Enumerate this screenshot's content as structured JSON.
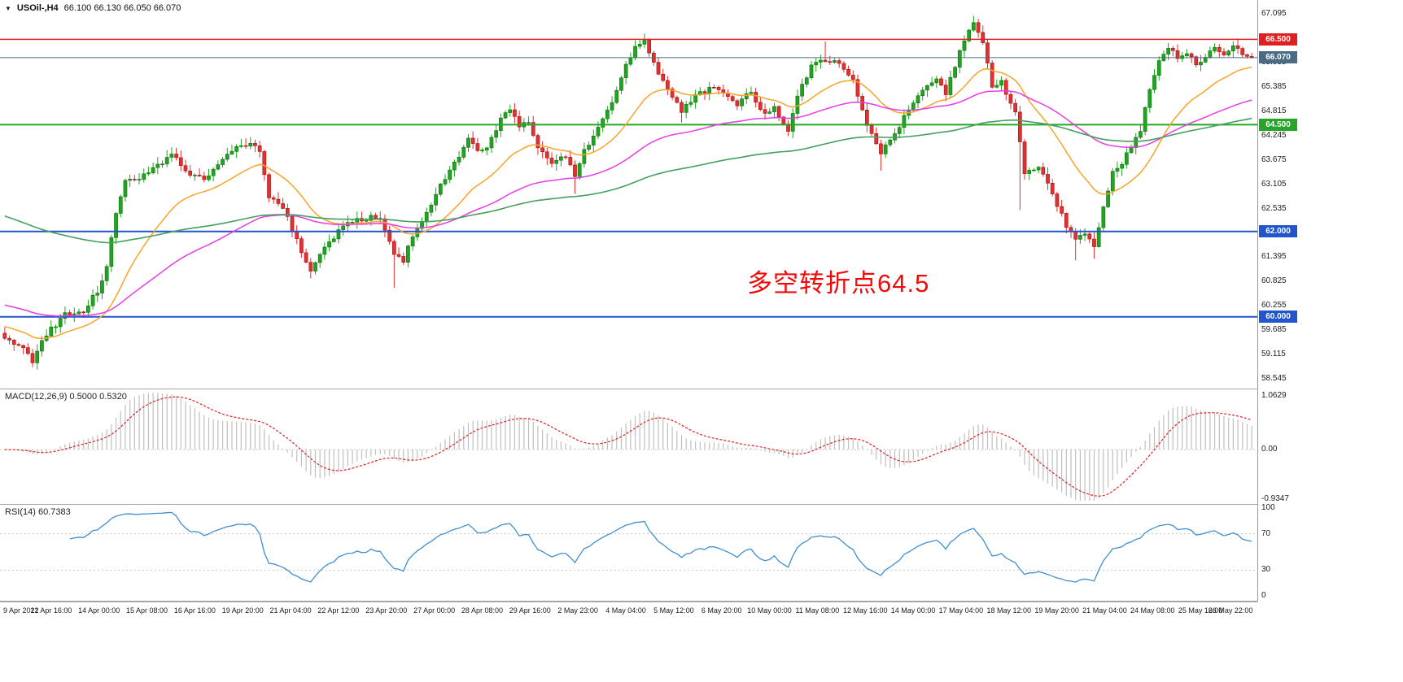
{
  "titlebar": {
    "dropdown_icon": "▼",
    "symbol": "USOil-,H4",
    "ohlc": "66.100 66.130 66.050 66.070"
  },
  "annotation": {
    "text": "多空转折点64.5"
  },
  "colors": {
    "up": "#1fa51f",
    "up_border": "#0c700c",
    "down": "#e33030",
    "down_border": "#9e1515",
    "macd_hist": "#bfbfbf",
    "macd_signal": "#e02020",
    "rsi_line": "#3f8fd2",
    "guide": "#c8c8c8",
    "axis_text": "#1c1c1c",
    "annotation": "#f00a0a"
  },
  "chart_data": {
    "type": "candlestick",
    "symbol": "USOil-",
    "timeframe": "H4",
    "num_candles": 270,
    "price_domain": [
      58.32,
      67.42
    ],
    "current_price": {
      "value": 66.07,
      "label": "66.070",
      "color": "#4a6b85"
    },
    "levels": [
      {
        "price": 66.5,
        "label": "66.500",
        "color": "#e02020",
        "width": 1.5
      },
      {
        "price": 64.5,
        "label": "64.500",
        "color": "#28a428",
        "width": 2
      },
      {
        "price": 62.0,
        "label": "62.000",
        "color": "#2255cc",
        "width": 2
      },
      {
        "price": 60.0,
        "label": "60.000",
        "color": "#2255cc",
        "width": 2
      }
    ],
    "moving_averages": [
      {
        "name": "ma-fast-orange",
        "period": 21,
        "seed": 59.8,
        "color": "#f7a428",
        "width": 1.5
      },
      {
        "name": "ma-mid-magenta",
        "period": 65,
        "seed": 60.3,
        "color": "#e83ce8",
        "width": 1.5
      },
      {
        "name": "ma-slow-green",
        "period": 150,
        "seed": 62.4,
        "color": "#44a05c",
        "width": 1.6
      }
    ],
    "close_keypoints": [
      [
        0,
        59.55
      ],
      [
        3,
        59.35
      ],
      [
        6,
        58.95
      ],
      [
        9,
        59.6
      ],
      [
        13,
        60.05
      ],
      [
        17,
        60.15
      ],
      [
        20,
        60.6
      ],
      [
        22,
        61.2
      ],
      [
        24,
        62.4
      ],
      [
        26,
        63.2
      ],
      [
        30,
        63.3
      ],
      [
        34,
        63.6
      ],
      [
        36,
        63.85
      ],
      [
        39,
        63.4
      ],
      [
        43,
        63.25
      ],
      [
        46,
        63.5
      ],
      [
        49,
        63.9
      ],
      [
        52,
        64.05
      ],
      [
        55,
        63.9
      ],
      [
        57,
        62.8
      ],
      [
        60,
        62.6
      ],
      [
        63,
        61.8
      ],
      [
        66,
        61.1
      ],
      [
        69,
        61.6
      ],
      [
        72,
        62.0
      ],
      [
        75,
        62.25
      ],
      [
        78,
        62.3
      ],
      [
        81,
        62.35
      ],
      [
        84,
        61.5
      ],
      [
        86,
        61.3
      ],
      [
        88,
        61.9
      ],
      [
        91,
        62.4
      ],
      [
        94,
        63.1
      ],
      [
        97,
        63.6
      ],
      [
        100,
        64.15
      ],
      [
        102,
        63.9
      ],
      [
        104,
        64.0
      ],
      [
        107,
        64.6
      ],
      [
        109,
        64.85
      ],
      [
        111,
        64.5
      ],
      [
        113,
        64.6
      ],
      [
        115,
        64.0
      ],
      [
        118,
        63.6
      ],
      [
        121,
        63.8
      ],
      [
        123,
        63.3
      ],
      [
        125,
        63.9
      ],
      [
        128,
        64.4
      ],
      [
        131,
        65.0
      ],
      [
        134,
        65.9
      ],
      [
        136,
        66.3
      ],
      [
        138,
        66.45
      ],
      [
        140,
        65.9
      ],
      [
        143,
        65.3
      ],
      [
        146,
        64.85
      ],
      [
        149,
        65.2
      ],
      [
        152,
        65.35
      ],
      [
        155,
        65.3
      ],
      [
        158,
        65.0
      ],
      [
        161,
        65.25
      ],
      [
        164,
        64.75
      ],
      [
        166,
        64.9
      ],
      [
        169,
        64.3
      ],
      [
        171,
        65.2
      ],
      [
        174,
        65.85
      ],
      [
        177,
        66.0
      ],
      [
        180,
        65.95
      ],
      [
        183,
        65.5
      ],
      [
        186,
        64.5
      ],
      [
        189,
        63.8
      ],
      [
        192,
        64.3
      ],
      [
        195,
        64.9
      ],
      [
        198,
        65.3
      ],
      [
        201,
        65.55
      ],
      [
        203,
        65.2
      ],
      [
        205,
        65.9
      ],
      [
        207,
        66.5
      ],
      [
        209,
        66.9
      ],
      [
        211,
        66.4
      ],
      [
        213,
        65.4
      ],
      [
        215,
        65.5
      ],
      [
        218,
        64.8
      ],
      [
        220,
        63.3
      ],
      [
        222,
        63.5
      ],
      [
        224,
        63.4
      ],
      [
        226,
        62.9
      ],
      [
        229,
        62.1
      ],
      [
        231,
        61.85
      ],
      [
        233,
        62.0
      ],
      [
        235,
        61.7
      ],
      [
        237,
        62.6
      ],
      [
        239,
        63.4
      ],
      [
        241,
        63.6
      ],
      [
        243,
        64.0
      ],
      [
        245,
        64.4
      ],
      [
        247,
        65.3
      ],
      [
        249,
        66.0
      ],
      [
        251,
        66.3
      ],
      [
        253,
        66.1
      ],
      [
        255,
        66.2
      ],
      [
        257,
        65.9
      ],
      [
        259,
        66.1
      ],
      [
        261,
        66.25
      ],
      [
        263,
        66.15
      ],
      [
        265,
        66.3
      ],
      [
        267,
        66.2
      ],
      [
        269,
        66.07
      ]
    ],
    "wick_overrides": [
      {
        "i": 6,
        "low": 58.85
      },
      {
        "i": 36,
        "high": 63.97
      },
      {
        "i": 52,
        "high": 64.18
      },
      {
        "i": 66,
        "low": 60.9
      },
      {
        "i": 84,
        "low": 60.68
      },
      {
        "i": 109,
        "high": 64.97
      },
      {
        "i": 123,
        "low": 62.88
      },
      {
        "i": 138,
        "high": 66.62
      },
      {
        "i": 146,
        "low": 64.55
      },
      {
        "i": 177,
        "high": 66.45
      },
      {
        "i": 189,
        "low": 63.42
      },
      {
        "i": 209,
        "high": 67.05
      },
      {
        "i": 219,
        "low": 62.5
      },
      {
        "i": 231,
        "low": 61.32
      },
      {
        "i": 235,
        "low": 61.36
      },
      {
        "i": 241,
        "low": 63.3
      }
    ],
    "price_axis_labels": [
      "67.095",
      "66.525",
      "65.955",
      "65.385",
      "64.815",
      "64.245",
      "63.675",
      "63.105",
      "62.535",
      "61.965",
      "61.395",
      "60.825",
      "60.255",
      "59.685",
      "59.115",
      "58.545"
    ],
    "macd": {
      "params": [
        12,
        26,
        9
      ],
      "display": "MACD(12,26,9) 0.5000 0.5320",
      "axis_labels": [
        "1.0629",
        "0.00",
        "-0.9347"
      ]
    },
    "rsi": {
      "period": 14,
      "display": "RSI(14) 60.7383",
      "axis_labels": [
        "100",
        "70",
        "30",
        "0"
      ],
      "guide_levels": [
        70,
        30
      ]
    },
    "time_labels": [
      "9 Apr 2021",
      "12 Apr 16:00",
      "14 Apr 00:00",
      "15 Apr 08:00",
      "16 Apr 16:00",
      "19 Apr 20:00",
      "21 Apr 04:00",
      "22 Apr 12:00",
      "23 Apr 20:00",
      "27 Apr 00:00",
      "28 Apr 08:00",
      "29 Apr 16:00",
      "2 May 23:00",
      "4 May 04:00",
      "5 May 12:00",
      "6 May 20:00",
      "10 May 00:00",
      "11 May 08:00",
      "12 May 16:00",
      "14 May 00:00",
      "17 May 04:00",
      "18 May 12:00",
      "19 May 20:00",
      "21 May 04:00",
      "24 May 08:00",
      "25 May 16:00",
      "26 May 22:00"
    ]
  }
}
